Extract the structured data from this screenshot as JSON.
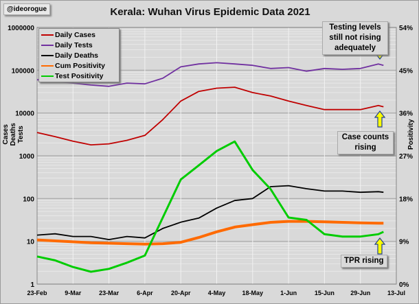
{
  "tag": "@ideorogue",
  "chart_data": {
    "type": "line",
    "title": "Kerala: Wuhan Virus Epidemic Data 2021",
    "ylabel": "Cases\nDeaths\nTests",
    "y2label": "Positivity",
    "yscale": "log",
    "ylim": [
      1,
      1000000
    ],
    "y_ticks": [
      "1",
      "10",
      "100",
      "1000",
      "10000",
      "100000",
      "1000000"
    ],
    "y2lim": [
      0,
      54
    ],
    "y2_ticks": [
      "0%",
      "9%",
      "18%",
      "27%",
      "36%",
      "45%",
      "54%"
    ],
    "x_ticks": [
      "23-Feb",
      "9-Mar",
      "23-Mar",
      "6-Apr",
      "20-Apr",
      "4-May",
      "18-May",
      "1-Jun",
      "15-Jun",
      "29-Jun",
      "13-Jul"
    ],
    "xlim": [
      "2021-02-23",
      "2021-07-13"
    ],
    "grid": true,
    "legend_position": "top-left",
    "x": [
      "2021-02-23",
      "2021-03-02",
      "2021-03-09",
      "2021-03-16",
      "2021-03-23",
      "2021-03-30",
      "2021-04-06",
      "2021-04-13",
      "2021-04-20",
      "2021-04-27",
      "2021-05-04",
      "2021-05-11",
      "2021-05-18",
      "2021-05-25",
      "2021-06-01",
      "2021-06-08",
      "2021-06-15",
      "2021-06-22",
      "2021-06-29",
      "2021-07-06",
      "2021-07-08"
    ],
    "series": [
      {
        "name": "Daily Cases",
        "axis": "left",
        "color": "#c00000",
        "values": [
          3500,
          2800,
          2200,
          1800,
          1900,
          2300,
          3000,
          7000,
          19000,
          32000,
          38000,
          40000,
          30000,
          25000,
          19000,
          15000,
          12000,
          12000,
          12000,
          15000,
          14000
        ]
      },
      {
        "name": "Daily Tests",
        "axis": "left",
        "color": "#7030a0",
        "values": [
          60000,
          55000,
          50000,
          45000,
          42000,
          50000,
          48000,
          65000,
          120000,
          140000,
          150000,
          140000,
          130000,
          110000,
          115000,
          95000,
          110000,
          105000,
          110000,
          140000,
          130000
        ]
      },
      {
        "name": "Daily Deaths",
        "axis": "left",
        "color": "#000000",
        "values": [
          14,
          15,
          13,
          13,
          11,
          13,
          12,
          20,
          28,
          35,
          60,
          90,
          100,
          190,
          200,
          170,
          150,
          150,
          140,
          145,
          140
        ]
      },
      {
        "name": "Cum Positivity",
        "axis": "right",
        "color": "#ff6a00",
        "values": [
          9.3,
          9.1,
          8.9,
          8.7,
          8.6,
          8.5,
          8.4,
          8.5,
          8.8,
          9.8,
          11.0,
          12.0,
          12.5,
          13.0,
          13.2,
          13.2,
          13.1,
          13.0,
          12.9,
          12.8,
          12.8
        ]
      },
      {
        "name": "Test Positivity",
        "axis": "right",
        "color": "#00cc00",
        "values": [
          5.8,
          5.0,
          3.6,
          2.6,
          3.2,
          4.5,
          6.0,
          14,
          22,
          25,
          28,
          30,
          24,
          20,
          14,
          13.5,
          10.5,
          10,
          10,
          10.5,
          11
        ]
      }
    ],
    "annotations": [
      "Testing levels still not rising adequately",
      "Case counts rising",
      "TPR rising"
    ]
  }
}
